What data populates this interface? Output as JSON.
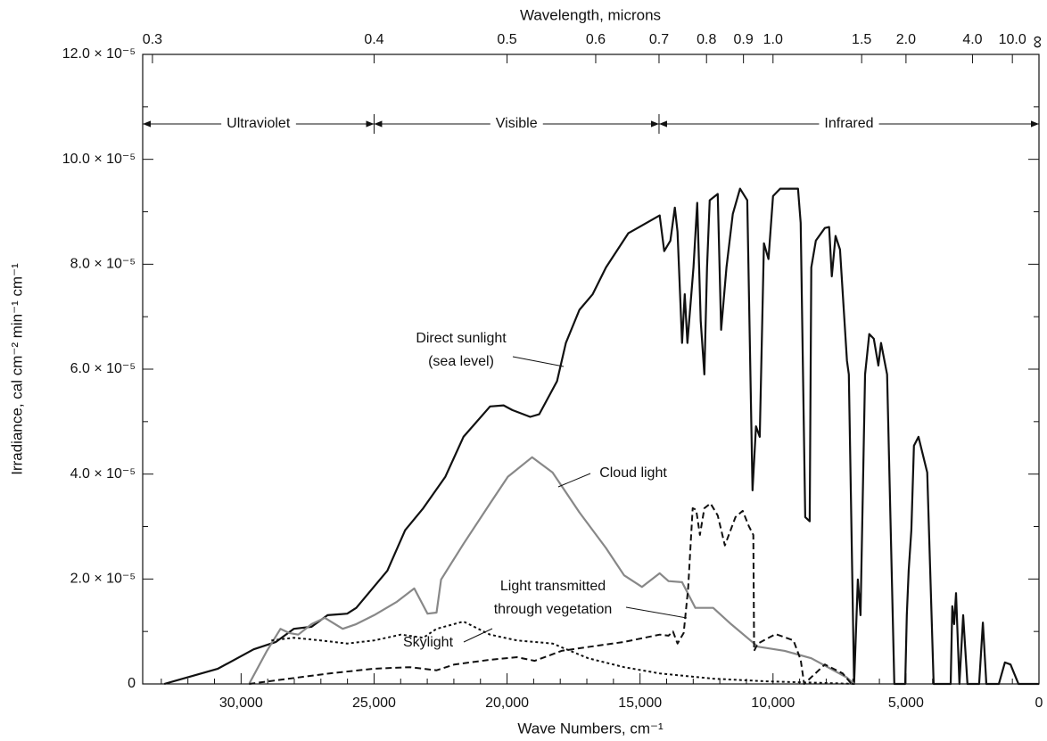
{
  "chart_data": {
    "type": "line",
    "top_axis_label": "Wavelength, microns",
    "xlabel": "Wave Numbers, cm⁻¹",
    "ylabel": "Irradiance, cal cm⁻² min⁻¹ cm⁻¹",
    "xlim": [
      33700,
      0
    ],
    "ylim": [
      0,
      12
    ],
    "xticks": [
      {
        "value": 30000,
        "label": "30,000"
      },
      {
        "value": 25000,
        "label": "25,000"
      },
      {
        "value": 20000,
        "label": "20,000"
      },
      {
        "value": 15000,
        "label": "15,000"
      },
      {
        "value": 10000,
        "label": "10,000"
      },
      {
        "value": 5000,
        "label": "5,000"
      },
      0
    ],
    "xminorticks": [
      1000,
      2000,
      3000,
      4000,
      6000,
      7000,
      8000,
      9000,
      11000,
      12000,
      13000,
      14000,
      16000,
      17000,
      18000,
      19000,
      21000,
      22000,
      23000,
      24000,
      26000,
      27000,
      28000,
      29000,
      31000,
      32000,
      33000
    ],
    "yticks": [
      0,
      {
        "value": 2,
        "label": "2.0 × 10⁻⁵"
      },
      {
        "value": 4,
        "label": "4.0 × 10⁻⁵"
      },
      {
        "value": 6,
        "label": "6.0 × 10⁻⁵"
      },
      {
        "value": 8,
        "label": "8.0 × 10⁻⁵"
      },
      {
        "value": 10,
        "label": "10.0 × 10⁻⁵"
      },
      {
        "value": 12,
        "label": "12.0 × 10⁻⁵"
      }
    ],
    "yminorticks": [
      1,
      3,
      5,
      7,
      9,
      11
    ],
    "top_ticks": [
      0.3,
      0.4,
      0.5,
      0.6,
      0.7,
      0.8,
      0.9,
      {
        "value": 1,
        "label": "1.0"
      },
      1.5,
      {
        "value": 2,
        "label": "2.0"
      },
      {
        "value": 4,
        "label": "4.0"
      },
      {
        "value": 10,
        "label": "10.0"
      },
      {
        "value": null,
        "label": "∞"
      }
    ],
    "regions": [
      {
        "label": "Ultraviolet",
        "to": 0.4
      },
      {
        "label": "Visible",
        "from": 0.4,
        "to": 0.7
      },
      {
        "label": "Infrared",
        "from": 0.7
      }
    ],
    "series": [
      {
        "label_lines": [
          "Direct sunlight",
          "(sea level)"
        ],
        "color": "#111111",
        "dash": "solid",
        "x": [
          32890,
          30870,
          29530,
          28690,
          28020,
          27350,
          26750,
          26010,
          25670,
          24500,
          23830,
          23150,
          22320,
          21640,
          20640,
          20130,
          19800,
          19130,
          18790,
          18120,
          17790,
          17280,
          16780,
          16280,
          15440,
          14260,
          14090,
          13860,
          13690,
          13590,
          13420,
          13320,
          13220,
          12990,
          12850,
          12720,
          12580,
          12480,
          12380,
          12080,
          11950,
          11750,
          11510,
          11240,
          10970,
          10770,
          10640,
          10500,
          10340,
          10170,
          10000,
          9730,
          9060,
          8960,
          8790,
          8620,
          8560,
          8390,
          8050,
          7890,
          7790,
          7650,
          7480,
          7220,
          7150,
          6950,
          6810,
          6710,
          6540,
          6380,
          6210,
          6040,
          5940,
          5710,
          5440,
          5030,
          4970,
          4900,
          4800,
          4700,
          4530,
          4200,
          3960,
          3320,
          3260,
          3190,
          3120,
          2990,
          2850,
          2690,
          2250,
          2110,
          1980,
          1510,
          1280,
          1070,
          770,
          0
        ],
        "values": [
          0,
          0.29,
          0.66,
          0.8,
          1.05,
          1.09,
          1.31,
          1.34,
          1.45,
          2.16,
          2.93,
          3.35,
          3.95,
          4.71,
          5.29,
          5.31,
          5.22,
          5.09,
          5.14,
          5.77,
          6.5,
          7.13,
          7.43,
          7.94,
          8.59,
          8.93,
          8.25,
          8.45,
          9.08,
          8.62,
          6.5,
          7.43,
          6.5,
          7.94,
          9.17,
          6.92,
          5.9,
          7.94,
          9.22,
          9.34,
          6.75,
          7.94,
          8.96,
          9.44,
          9.22,
          3.69,
          4.91,
          4.71,
          8.4,
          8.1,
          9.3,
          9.44,
          9.44,
          8.79,
          3.18,
          3.1,
          7.94,
          8.45,
          8.69,
          8.71,
          7.77,
          8.54,
          8.28,
          6.16,
          5.9,
          0,
          1.99,
          1.31,
          5.9,
          6.67,
          6.58,
          6.07,
          6.5,
          5.9,
          0,
          0,
          1.31,
          2.16,
          2.93,
          4.54,
          4.71,
          4.03,
          0,
          0,
          1.48,
          1.14,
          1.73,
          0,
          1.31,
          0,
          0,
          1.17,
          0,
          0,
          0.41,
          0.37,
          0,
          0
        ]
      },
      {
        "label_lines": [
          "Cloud light"
        ],
        "color": "#888888",
        "dash": "solid",
        "x": [
          29700,
          29030,
          28520,
          28190,
          27850,
          27350,
          26850,
          26180,
          25670,
          25000,
          24160,
          23490,
          22990,
          22650,
          22480,
          21640,
          20640,
          19970,
          19060,
          18290,
          17280,
          16280,
          15600,
          14930,
          14260,
          13930,
          13420,
          12920,
          12250,
          11580,
          10570,
          9560,
          8560,
          7220,
          6950
        ],
        "values": [
          0,
          0.63,
          1.05,
          0.97,
          0.94,
          1.14,
          1.26,
          1.05,
          1.14,
          1.31,
          1.56,
          1.82,
          1.34,
          1.36,
          1.99,
          2.67,
          3.44,
          3.95,
          4.32,
          4.03,
          3.27,
          2.59,
          2.07,
          1.85,
          2.11,
          1.96,
          1.94,
          1.45,
          1.45,
          1.14,
          0.71,
          0.63,
          0.49,
          0.12,
          0
        ]
      },
      {
        "label_lines": [
          "Light transmitted",
          "through vegetation"
        ],
        "color": "#111111",
        "dash": "dashed",
        "x": [
          29700,
          28360,
          26680,
          25000,
          23660,
          22650,
          21980,
          20640,
          19630,
          18960,
          17950,
          16610,
          15600,
          14260,
          13930,
          13760,
          13590,
          13360,
          13190,
          13020,
          12890,
          12750,
          12580,
          12350,
          12080,
          11810,
          11410,
          11140,
          10910,
          10740,
          10710,
          10570,
          9900,
          9230,
          8960,
          8830,
          8050,
          7380,
          7050
        ],
        "values": [
          0,
          0.09,
          0.2,
          0.29,
          0.32,
          0.26,
          0.37,
          0.46,
          0.51,
          0.44,
          0.63,
          0.73,
          0.8,
          0.94,
          0.92,
          1.0,
          0.77,
          0.97,
          1.82,
          3.35,
          3.32,
          2.84,
          3.35,
          3.44,
          3.21,
          2.64,
          3.18,
          3.3,
          3.01,
          2.84,
          0.63,
          0.77,
          0.95,
          0.83,
          0.46,
          0,
          0.37,
          0.2,
          0
        ]
      },
      {
        "label_lines": [
          "Skylight"
        ],
        "color": "#111111",
        "dash": "dotted",
        "x": [
          28860,
          28020,
          27010,
          26010,
          25000,
          23990,
          23150,
          22650,
          21640,
          20640,
          19630,
          18290,
          16950,
          15600,
          14260,
          12250,
          10240,
          8220,
          6880
        ],
        "values": [
          0.83,
          0.88,
          0.83,
          0.77,
          0.83,
          0.94,
          0.88,
          1.05,
          1.19,
          0.94,
          0.83,
          0.77,
          0.49,
          0.32,
          0.2,
          0.1,
          0.05,
          0.02,
          0
        ]
      }
    ]
  }
}
